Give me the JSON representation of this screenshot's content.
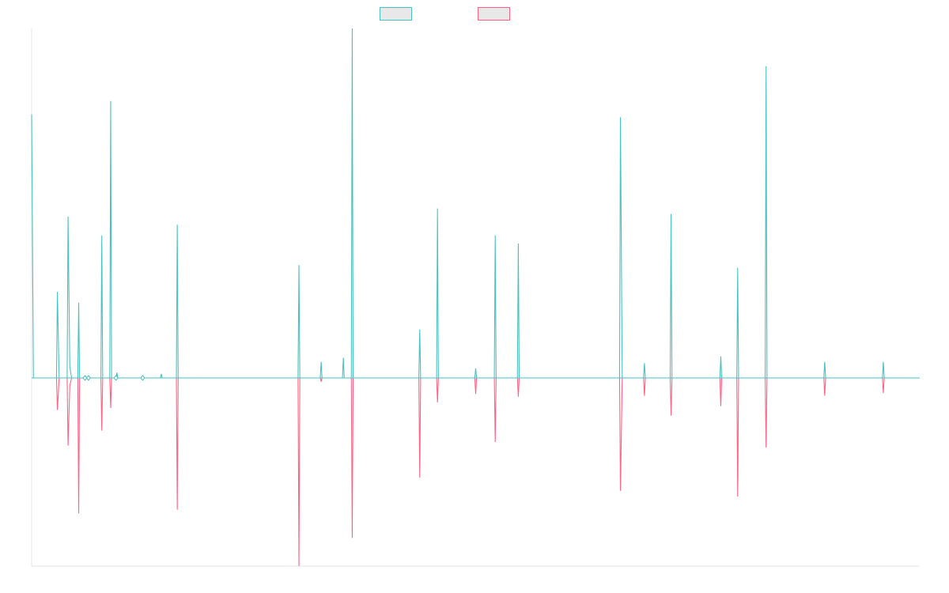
{
  "chart_data": {
    "type": "line",
    "title": "",
    "xlabel": "",
    "ylabel": "",
    "ylim": [
      -100,
      100
    ],
    "xlim": [
      0,
      1000
    ],
    "grid": false,
    "legend_placement": "top-center",
    "series": [
      {
        "name": "",
        "color": "#4BC0C0",
        "fill": "#E8E8E8",
        "points": [
          [
            0,
            98
          ],
          [
            2,
            0
          ],
          [
            28,
            0
          ],
          [
            29,
            32
          ],
          [
            31,
            0
          ],
          [
            40,
            0
          ],
          [
            41,
            60
          ],
          [
            43,
            4
          ],
          [
            45,
            0
          ],
          [
            52,
            0
          ],
          [
            53,
            28
          ],
          [
            54,
            0
          ],
          [
            60,
            0
          ],
          [
            78,
            0
          ],
          [
            79,
            53
          ],
          [
            80,
            0
          ],
          [
            88,
            0
          ],
          [
            89,
            103
          ],
          [
            90,
            0
          ],
          [
            95,
            0
          ],
          [
            96,
            2
          ],
          [
            97,
            0
          ],
          [
            145,
            0
          ],
          [
            146,
            1.5
          ],
          [
            147,
            0
          ],
          [
            163,
            0
          ],
          [
            164,
            57
          ],
          [
            165,
            0
          ],
          [
            300,
            0
          ],
          [
            301,
            42
          ],
          [
            302,
            0
          ],
          [
            325,
            0
          ],
          [
            326,
            6
          ],
          [
            327,
            0
          ],
          [
            350,
            0
          ],
          [
            351,
            7.5
          ],
          [
            352,
            0
          ],
          [
            360,
            0
          ],
          [
            361,
            130
          ],
          [
            362,
            0
          ],
          [
            436,
            0
          ],
          [
            437,
            18
          ],
          [
            438,
            0
          ],
          [
            456,
            0
          ],
          [
            457,
            63
          ],
          [
            458,
            0
          ],
          [
            499,
            0
          ],
          [
            500,
            3.5
          ],
          [
            501,
            0
          ],
          [
            521,
            0
          ],
          [
            522,
            53
          ],
          [
            523,
            0
          ],
          [
            547,
            0
          ],
          [
            548,
            50
          ],
          [
            549,
            0
          ],
          [
            662,
            0
          ],
          [
            663,
            97
          ],
          [
            665,
            0
          ],
          [
            689,
            0
          ],
          [
            690,
            5.5
          ],
          [
            691,
            0
          ],
          [
            719,
            0
          ],
          [
            720,
            61
          ],
          [
            721,
            0
          ],
          [
            775,
            0
          ],
          [
            776,
            8
          ],
          [
            777,
            0
          ],
          [
            794,
            0
          ],
          [
            795,
            41
          ],
          [
            796,
            0
          ],
          [
            826,
            0
          ],
          [
            827,
            116
          ],
          [
            828,
            0
          ],
          [
            892,
            0
          ],
          [
            893,
            6
          ],
          [
            894,
            0
          ],
          [
            958,
            0
          ],
          [
            959,
            6
          ],
          [
            960,
            0
          ],
          [
            1000,
            0
          ]
        ]
      },
      {
        "name": "",
        "color": "#FF6384",
        "fill": "#E8E8E8",
        "points": [
          [
            0,
            0
          ],
          [
            28,
            0
          ],
          [
            29,
            -17
          ],
          [
            31,
            0
          ],
          [
            40,
            0
          ],
          [
            41,
            -36
          ],
          [
            43,
            -4
          ],
          [
            45,
            0
          ],
          [
            52,
            0
          ],
          [
            53,
            -72
          ],
          [
            54,
            0
          ],
          [
            60,
            0
          ],
          [
            78,
            0
          ],
          [
            79,
            -28
          ],
          [
            80,
            0
          ],
          [
            88,
            0
          ],
          [
            89,
            -16
          ],
          [
            90,
            0
          ],
          [
            163,
            0
          ],
          [
            164,
            -70
          ],
          [
            165,
            0
          ],
          [
            300,
            0
          ],
          [
            301,
            -100
          ],
          [
            302,
            0
          ],
          [
            325,
            0
          ],
          [
            326,
            -2
          ],
          [
            327,
            0
          ],
          [
            360,
            0
          ],
          [
            361,
            -85
          ],
          [
            362,
            0
          ],
          [
            436,
            0
          ],
          [
            437,
            -53
          ],
          [
            438,
            0
          ],
          [
            456,
            0
          ],
          [
            457,
            -13
          ],
          [
            458,
            0
          ],
          [
            499,
            0
          ],
          [
            500,
            -8.5
          ],
          [
            501,
            0
          ],
          [
            521,
            0
          ],
          [
            522,
            -34
          ],
          [
            523,
            0
          ],
          [
            547,
            0
          ],
          [
            548,
            -10
          ],
          [
            549,
            0
          ],
          [
            662,
            0
          ],
          [
            663,
            -60
          ],
          [
            665,
            0
          ],
          [
            689,
            0
          ],
          [
            690,
            -9.5
          ],
          [
            691,
            0
          ],
          [
            719,
            0
          ],
          [
            720,
            -20
          ],
          [
            721,
            0
          ],
          [
            775,
            0
          ],
          [
            776,
            -15
          ],
          [
            777,
            0
          ],
          [
            794,
            0
          ],
          [
            795,
            -63
          ],
          [
            796,
            0
          ],
          [
            826,
            0
          ],
          [
            827,
            -37
          ],
          [
            828,
            0
          ],
          [
            892,
            0
          ],
          [
            893,
            -9.5
          ],
          [
            894,
            0
          ],
          [
            958,
            0
          ],
          [
            959,
            -8
          ],
          [
            960,
            0
          ],
          [
            1000,
            0
          ]
        ]
      }
    ],
    "markers": [
      {
        "x": 60,
        "y": 0,
        "color": "#4BC0C0"
      },
      {
        "x": 64,
        "y": 0,
        "color": "#4BC0C0"
      },
      {
        "x": 95,
        "y": 0,
        "color": "#4BC0C0"
      },
      {
        "x": 125,
        "y": 0,
        "color": "#4BC0C0"
      }
    ]
  }
}
